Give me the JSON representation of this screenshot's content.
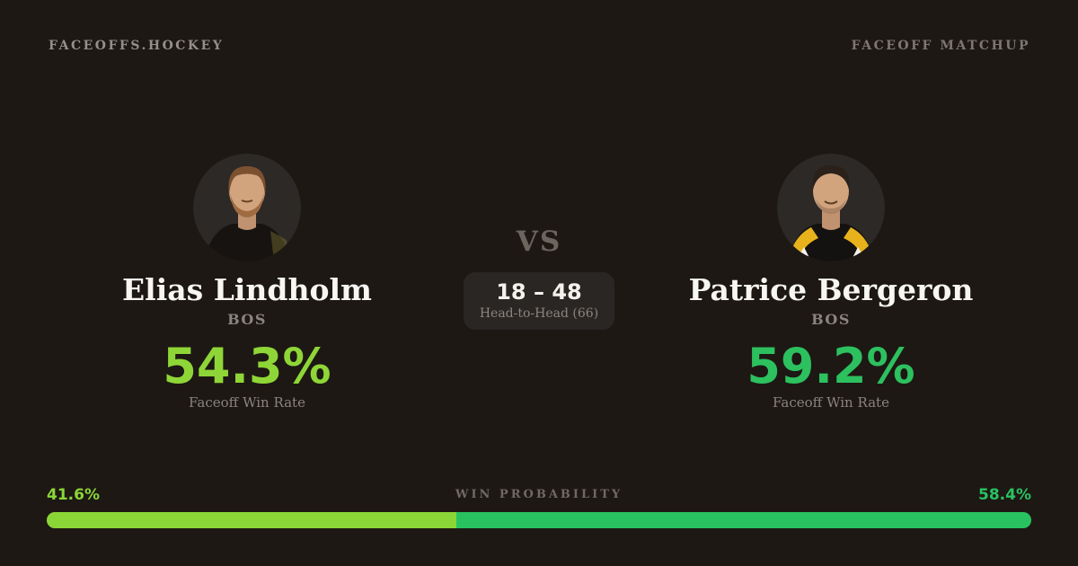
{
  "page": {
    "background": "#1d1814"
  },
  "header": {
    "brand": "FACEOFFS.HOCKEY",
    "context": "FACEOFF MATCHUP"
  },
  "players": {
    "left": {
      "name": "Elias Lindholm",
      "team": "BOS",
      "win_rate": "54.3%",
      "win_rate_label": "Faceoff Win Rate",
      "accent_color": "#8ed637",
      "avatar": "player-photo-elias-lindholm"
    },
    "right": {
      "name": "Patrice Bergeron",
      "team": "BOS",
      "win_rate": "59.2%",
      "win_rate_label": "Faceoff Win Rate",
      "accent_color": "#2dc05f",
      "avatar": "player-photo-patrice-bergeron"
    }
  },
  "center": {
    "vs": "VS",
    "head_to_head_score": "18 – 48",
    "head_to_head_label": "Head-to-Head (66)"
  },
  "win_probability": {
    "label": "WIN PROBABILITY",
    "left_pct_text": "41.6%",
    "right_pct_text": "58.4%",
    "left_value": 41.6,
    "right_value": 58.4,
    "left_color": "#8bd637",
    "right_color": "#29c261"
  }
}
